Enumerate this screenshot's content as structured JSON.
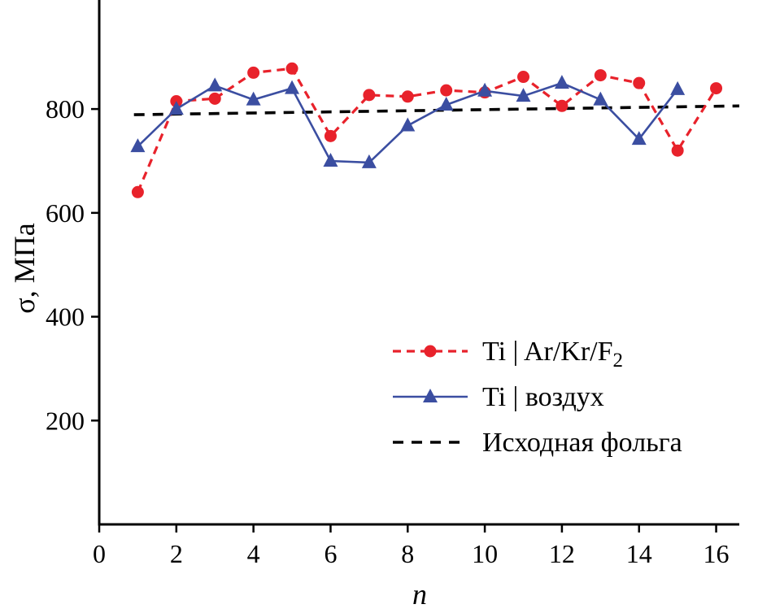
{
  "figure": {
    "background": "#ffffff",
    "axis_color": "#000000"
  },
  "chart_data": {
    "type": "line",
    "title": "",
    "xlabel": "n",
    "ylabel": "σ, МПа",
    "xlim": [
      0,
      16.6
    ],
    "ylim": [
      0,
      1010
    ],
    "x_ticks": [
      0,
      2,
      4,
      6,
      8,
      10,
      12,
      14,
      16
    ],
    "y_ticks": [
      200,
      400,
      600,
      800
    ],
    "grid": false,
    "legend_position": "lower-right",
    "series": [
      {
        "name": "Ti | Ar/Kr/F",
        "name_sub": "2",
        "color": "#e8222b",
        "line_style": "dashed",
        "marker": "circle",
        "x": [
          1,
          2,
          3,
          4,
          5,
          6,
          7,
          8,
          9,
          10,
          11,
          12,
          13,
          14,
          15,
          16
        ],
        "values": [
          640,
          815,
          820,
          870,
          878,
          748,
          827,
          824,
          836,
          832,
          862,
          806,
          865,
          850,
          720,
          840
        ]
      },
      {
        "name": "Ti | воздух",
        "name_sub": "",
        "color": "#3b4ea1",
        "line_style": "solid",
        "marker": "triangle",
        "x": [
          1,
          2,
          3,
          4,
          5,
          6,
          7,
          8,
          9,
          10,
          11,
          12,
          13,
          14,
          15
        ],
        "values": [
          728,
          800,
          845,
          818,
          840,
          700,
          697,
          768,
          808,
          835,
          825,
          850,
          818,
          742,
          838
        ]
      },
      {
        "name": "Исходная фольга",
        "name_sub": "",
        "color": "#000000",
        "line_style": "dashed",
        "marker": "none",
        "x": [
          0.9,
          16.6
        ],
        "values": [
          789,
          806
        ]
      }
    ]
  }
}
